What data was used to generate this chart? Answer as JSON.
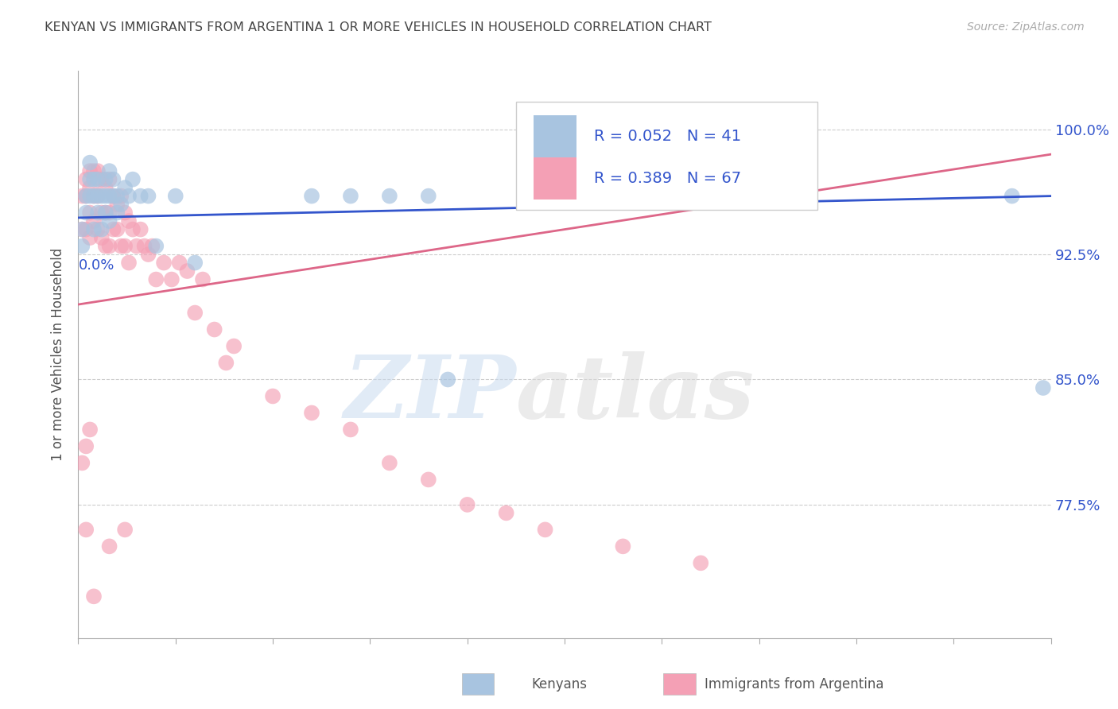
{
  "title": "KENYAN VS IMMIGRANTS FROM ARGENTINA 1 OR MORE VEHICLES IN HOUSEHOLD CORRELATION CHART",
  "source": "Source: ZipAtlas.com",
  "ylabel": "1 or more Vehicles in Household",
  "ytick_labels": [
    "77.5%",
    "85.0%",
    "92.5%",
    "100.0%"
  ],
  "ytick_values": [
    0.775,
    0.85,
    0.925,
    1.0
  ],
  "xmin": 0.0,
  "xmax": 0.25,
  "ymin": 0.695,
  "ymax": 1.035,
  "watermark_zip": "ZIP",
  "watermark_atlas": "atlas",
  "legend_R1": "0.052",
  "legend_N1": "41",
  "legend_R2": "0.389",
  "legend_N2": "67",
  "blue_scatter_x": [
    0.001,
    0.001,
    0.002,
    0.002,
    0.003,
    0.003,
    0.003,
    0.004,
    0.004,
    0.004,
    0.005,
    0.005,
    0.005,
    0.006,
    0.006,
    0.007,
    0.007,
    0.007,
    0.008,
    0.008,
    0.008,
    0.009,
    0.009,
    0.01,
    0.01,
    0.011,
    0.012,
    0.013,
    0.014,
    0.016,
    0.018,
    0.02,
    0.025,
    0.03,
    0.06,
    0.07,
    0.08,
    0.09,
    0.095,
    0.24,
    0.248
  ],
  "blue_scatter_y": [
    0.93,
    0.94,
    0.95,
    0.96,
    0.96,
    0.97,
    0.98,
    0.96,
    0.97,
    0.94,
    0.96,
    0.97,
    0.95,
    0.96,
    0.94,
    0.96,
    0.95,
    0.97,
    0.96,
    0.975,
    0.945,
    0.96,
    0.97,
    0.96,
    0.95,
    0.955,
    0.965,
    0.96,
    0.97,
    0.96,
    0.96,
    0.93,
    0.96,
    0.92,
    0.96,
    0.96,
    0.96,
    0.96,
    0.85,
    0.96,
    0.845
  ],
  "pink_scatter_x": [
    0.001,
    0.001,
    0.002,
    0.002,
    0.002,
    0.003,
    0.003,
    0.003,
    0.003,
    0.004,
    0.004,
    0.004,
    0.005,
    0.005,
    0.005,
    0.006,
    0.006,
    0.006,
    0.007,
    0.007,
    0.007,
    0.008,
    0.008,
    0.008,
    0.009,
    0.009,
    0.01,
    0.01,
    0.011,
    0.011,
    0.012,
    0.012,
    0.013,
    0.013,
    0.014,
    0.015,
    0.016,
    0.017,
    0.018,
    0.019,
    0.02,
    0.022,
    0.024,
    0.026,
    0.028,
    0.03,
    0.032,
    0.035,
    0.038,
    0.04,
    0.05,
    0.06,
    0.07,
    0.08,
    0.09,
    0.1,
    0.11,
    0.12,
    0.14,
    0.16,
    0.001,
    0.002,
    0.003,
    0.004,
    0.008,
    0.012,
    0.002
  ],
  "pink_scatter_y": [
    0.94,
    0.96,
    0.97,
    0.96,
    0.94,
    0.975,
    0.965,
    0.95,
    0.935,
    0.975,
    0.96,
    0.945,
    0.96,
    0.975,
    0.94,
    0.97,
    0.95,
    0.935,
    0.965,
    0.95,
    0.93,
    0.97,
    0.95,
    0.93,
    0.96,
    0.94,
    0.955,
    0.94,
    0.96,
    0.93,
    0.95,
    0.93,
    0.945,
    0.92,
    0.94,
    0.93,
    0.94,
    0.93,
    0.925,
    0.93,
    0.91,
    0.92,
    0.91,
    0.92,
    0.915,
    0.89,
    0.91,
    0.88,
    0.86,
    0.87,
    0.84,
    0.83,
    0.82,
    0.8,
    0.79,
    0.775,
    0.77,
    0.76,
    0.75,
    0.74,
    0.8,
    0.81,
    0.82,
    0.72,
    0.75,
    0.76,
    0.76
  ],
  "blue_line_x": [
    0.0,
    0.25
  ],
  "blue_line_y": [
    0.947,
    0.96
  ],
  "pink_line_x": [
    0.0,
    0.25
  ],
  "pink_line_y": [
    0.895,
    0.985
  ],
  "blue_color": "#a8c4e0",
  "pink_color": "#f4a0b5",
  "blue_line_color": "#3355cc",
  "pink_line_color": "#dd6688",
  "legend_text_color": "#3355cc",
  "title_color": "#444444",
  "axis_label_color": "#3355cc",
  "grid_color": "#cccccc",
  "background_color": "#ffffff"
}
